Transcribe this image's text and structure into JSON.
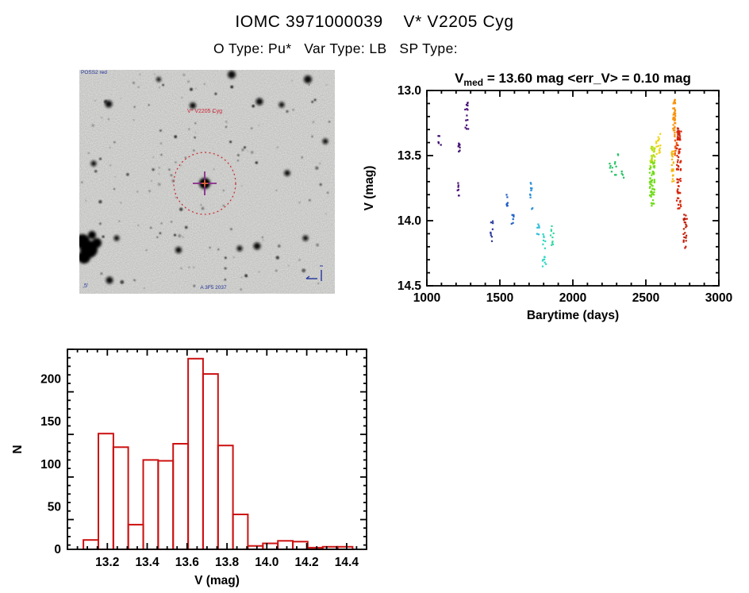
{
  "header": {
    "title": "IOMC 3971000039    V* V2205 Cyg",
    "subtitle": "O Type: Pu*   Var Type: LB   SP Type:"
  },
  "finding_chart": {
    "survey_label": "POSS2 red",
    "target_label": "V* V2205 Cyg",
    "plate_label": "A 3F5 2037",
    "scale_label": ",5'",
    "circle_color": "#c63333",
    "cross_color": "#8b2a8b",
    "center_marker_color": "#e06a30",
    "big_stars": [
      [
        37,
        43,
        4.5
      ],
      [
        143,
        45,
        4
      ],
      [
        192,
        6,
        5
      ],
      [
        227,
        40,
        4.5
      ],
      [
        255,
        44,
        3.5
      ],
      [
        288,
        12,
        5
      ],
      [
        125,
        227,
        4
      ],
      [
        224,
        222,
        4.5
      ],
      [
        202,
        225,
        3.5
      ],
      [
        47,
        212,
        3.5
      ],
      [
        38,
        265,
        4.5
      ],
      [
        285,
        212,
        3.5
      ],
      [
        100,
        12,
        3
      ],
      [
        310,
        90,
        3.5
      ],
      [
        18,
        118,
        3.5
      ],
      [
        262,
        130,
        3.8
      ]
    ],
    "blob_stars": [
      [
        4,
        216,
        9
      ],
      [
        12,
        226,
        11
      ],
      [
        6,
        236,
        8
      ],
      [
        22,
        218,
        6
      ],
      [
        16,
        208,
        5
      ]
    ]
  },
  "chart_data": [
    {
      "id": "lightcurve",
      "type": "scatter",
      "title": {
        "prefix": "V",
        "subscript": "med",
        "suffix": " = 13.60 mag <err_V> = 0.10 mag"
      },
      "xlabel": "Barytime (days)",
      "ylabel": "V (mag)",
      "xlim": [
        1000,
        3000
      ],
      "ylim": [
        13.0,
        14.5
      ],
      "y_inverted_mag_axis": true,
      "xticks": [
        1000,
        1500,
        2000,
        2500,
        3000
      ],
      "yticks": [
        13.0,
        13.5,
        14.0,
        14.5
      ],
      "x_minor": 100,
      "y_minor": 0.1,
      "grid": false,
      "legend": "none (color encodes time, violet = early to red = late)",
      "clusters": [
        {
          "t": [
            1078,
            1098
          ],
          "v": [
            13.34,
            13.42
          ],
          "n": 5,
          "color": "#3f0b6e"
        },
        {
          "t": [
            1212,
            1226
          ],
          "v": [
            13.4,
            13.47
          ],
          "n": 8,
          "color": "#3f0b6e"
        },
        {
          "t": [
            1210,
            1222
          ],
          "v": [
            13.69,
            13.81
          ],
          "n": 7,
          "color": "#4a1178"
        },
        {
          "t": [
            1260,
            1286
          ],
          "v": [
            13.08,
            13.3
          ],
          "n": 14,
          "color": "#4a1178"
        },
        {
          "t": [
            1436,
            1452
          ],
          "v": [
            13.95,
            14.16
          ],
          "n": 9,
          "color": "#2c3a9e"
        },
        {
          "t": [
            1543,
            1558
          ],
          "v": [
            13.77,
            13.89
          ],
          "n": 7,
          "color": "#2060c8"
        },
        {
          "t": [
            1580,
            1596
          ],
          "v": [
            13.95,
            14.03
          ],
          "n": 6,
          "color": "#2060c8"
        },
        {
          "t": [
            1703,
            1722
          ],
          "v": [
            13.7,
            13.83
          ],
          "n": 9,
          "color": "#2a8fd8"
        },
        {
          "t": [
            1716,
            1724
          ],
          "v": [
            13.89,
            13.93
          ],
          "n": 2,
          "color": "#2a8fd8"
        },
        {
          "t": [
            1753,
            1770
          ],
          "v": [
            14.02,
            14.13
          ],
          "n": 6,
          "color": "#28bcd8"
        },
        {
          "t": [
            1793,
            1817
          ],
          "v": [
            14.08,
            14.4
          ],
          "n": 15,
          "color": "#30d8c4"
        },
        {
          "t": [
            1846,
            1870
          ],
          "v": [
            14.03,
            14.2
          ],
          "n": 10,
          "color": "#32d9a2"
        },
        {
          "t": [
            2252,
            2272
          ],
          "v": [
            13.52,
            13.63
          ],
          "n": 5,
          "color": "#25c363"
        },
        {
          "t": [
            2288,
            2312
          ],
          "v": [
            13.48,
            13.68
          ],
          "n": 7,
          "color": "#25c363"
        },
        {
          "t": [
            2330,
            2352
          ],
          "v": [
            13.59,
            13.67
          ],
          "n": 4,
          "color": "#25c363"
        },
        {
          "t": [
            2528,
            2562
          ],
          "v": [
            13.42,
            13.58
          ],
          "n": 30,
          "color": "#b8e018"
        },
        {
          "t": [
            2526,
            2560
          ],
          "v": [
            13.55,
            13.9
          ],
          "n": 55,
          "color": "#6edc16"
        },
        {
          "t": [
            2570,
            2600
          ],
          "v": [
            13.33,
            13.49
          ],
          "n": 16,
          "color": "#eed612"
        },
        {
          "t": [
            2676,
            2694
          ],
          "v": [
            13.46,
            13.7
          ],
          "n": 22,
          "color": "#f4b70c"
        },
        {
          "t": [
            2686,
            2703
          ],
          "v": [
            13.07,
            13.36
          ],
          "n": 40,
          "color": "#f9920a"
        },
        {
          "t": [
            2700,
            2714
          ],
          "v": [
            13.38,
            13.58
          ],
          "n": 12,
          "color": "#ee5c0e"
        },
        {
          "t": [
            2712,
            2742
          ],
          "v": [
            13.29,
            13.92
          ],
          "n": 80,
          "color": "#d62408"
        },
        {
          "t": [
            2758,
            2784
          ],
          "v": [
            13.95,
            14.17
          ],
          "n": 22,
          "color": "#c21d06"
        },
        {
          "t": [
            2768,
            2774
          ],
          "v": [
            14.19,
            14.21
          ],
          "n": 2,
          "color": "#c21d06"
        }
      ]
    },
    {
      "id": "histogram",
      "type": "bar",
      "xlabel": "V (mag)",
      "ylabel": "N",
      "xlim": [
        13.0,
        14.5
      ],
      "ylim": [
        0,
        235
      ],
      "xticks": [
        13.2,
        13.4,
        13.6,
        13.8,
        14.0,
        14.2,
        14.4
      ],
      "yticks": [
        0,
        50,
        100,
        150,
        200
      ],
      "x_minor": 0.05,
      "y_minor": 10,
      "grid": false,
      "bin_start": 13.08,
      "bin_width": 0.075,
      "counts": [
        11,
        136,
        120,
        29,
        105,
        104,
        124,
        224,
        206,
        122,
        41,
        4,
        7,
        10,
        9,
        2,
        3,
        3
      ],
      "bar_color": "#cc1111"
    }
  ]
}
